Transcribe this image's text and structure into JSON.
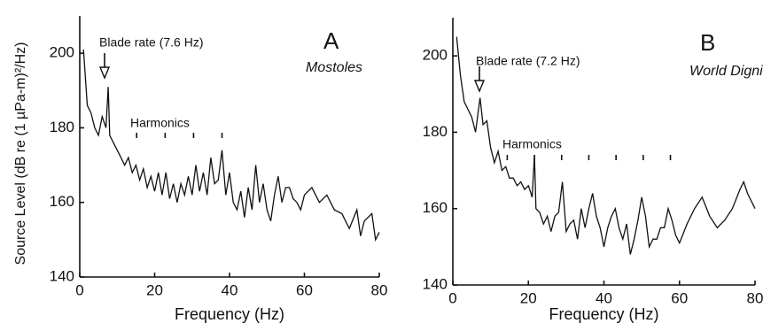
{
  "chart_data": [
    {
      "type": "line",
      "y_label": "Source Level (dB re (1 µPa-m)²/Hz)",
      "x_label": "Frequency (Hz)",
      "panel_label": "A",
      "vessel": "Mostoles",
      "blade_label": "Blade rate (7.6 Hz)",
      "harmonics_label": "Harmonics",
      "harmonic_markers": [
        15.2,
        22.8,
        30.4,
        38
      ],
      "xlim": [
        0,
        80
      ],
      "xticks": [
        0,
        20,
        40,
        60,
        80
      ],
      "ylim": [
        140,
        210
      ],
      "yticks": [
        140,
        160,
        180,
        200
      ],
      "series": [
        {
          "name": "Mostoles",
          "color": "#111111",
          "x": [
            1,
            2,
            3,
            4,
            5,
            6,
            7,
            7.6,
            8,
            9,
            10,
            11,
            12,
            13,
            14,
            15,
            16,
            17,
            18,
            19,
            20,
            21,
            22,
            23,
            24,
            25,
            26,
            27,
            28,
            29,
            30,
            31,
            32,
            33,
            34,
            35,
            36,
            37,
            38,
            39,
            40,
            41,
            42,
            43,
            44,
            45,
            46,
            47,
            48,
            49,
            50,
            51,
            52,
            53,
            54,
            55,
            56,
            57,
            58,
            59,
            60,
            62,
            64,
            66,
            68,
            70,
            72,
            74,
            75,
            76,
            78,
            79,
            80
          ],
          "values": [
            201,
            186,
            184,
            180,
            178,
            183,
            180,
            191,
            178,
            176,
            174,
            172,
            170,
            172,
            168,
            170,
            166,
            169,
            164,
            167,
            163,
            168,
            162,
            168,
            161,
            165,
            160,
            165,
            162,
            167,
            162,
            170,
            163,
            168,
            162,
            172,
            165,
            166,
            174,
            162,
            168,
            160,
            158,
            163,
            156,
            164,
            158,
            170,
            160,
            165,
            158,
            155,
            162,
            167,
            160,
            164,
            164,
            161,
            160,
            158,
            162,
            164,
            160,
            162,
            158,
            157,
            153,
            158,
            151,
            155,
            157,
            150,
            152
          ]
        }
      ]
    },
    {
      "type": "line",
      "x_label": "Frequency (Hz)",
      "panel_label": "B",
      "vessel": "World Dignity",
      "blade_label": "Blade rate (7.2 Hz)",
      "harmonics_label": "Harmonics",
      "harmonic_markers": [
        14.4,
        21.6,
        28.8,
        36,
        43.2,
        50.4,
        57.6
      ],
      "xlim": [
        0,
        80
      ],
      "xticks": [
        0,
        20,
        40,
        60,
        80
      ],
      "ylim": [
        140,
        210
      ],
      "yticks": [
        140,
        160,
        180,
        200
      ],
      "series": [
        {
          "name": "World Dignity",
          "color": "#111111",
          "x": [
            1,
            1.5,
            2,
            3,
            4,
            5,
            6,
            7.2,
            8,
            9,
            10,
            11,
            12,
            13,
            14,
            15,
            16,
            17,
            18,
            19,
            20,
            21,
            21.6,
            22,
            23,
            24,
            25,
            26,
            27,
            28,
            29,
            30,
            31,
            32,
            33,
            34,
            35,
            36,
            37,
            38,
            39,
            40,
            41,
            42,
            43,
            44,
            45,
            46,
            47,
            48,
            49,
            50,
            51,
            52,
            53,
            54,
            55,
            56,
            57,
            58,
            59,
            60,
            62,
            64,
            66,
            68,
            70,
            72,
            74,
            76,
            77,
            78,
            80
          ],
          "values": [
            205,
            200,
            195,
            188,
            186,
            184,
            180,
            189,
            182,
            183,
            176,
            172,
            175,
            170,
            171,
            168,
            168,
            166,
            167,
            165,
            166,
            163,
            174,
            160,
            159,
            156,
            158,
            154,
            158,
            159,
            167,
            154,
            156,
            157,
            152,
            160,
            155,
            160,
            164,
            158,
            155,
            150,
            155,
            158,
            160,
            155,
            152,
            156,
            148,
            152,
            157,
            163,
            158,
            150,
            152,
            152,
            155,
            155,
            160,
            157,
            153,
            151,
            156,
            160,
            163,
            158,
            155,
            157,
            160,
            165,
            167,
            164,
            160
          ]
        }
      ]
    }
  ]
}
